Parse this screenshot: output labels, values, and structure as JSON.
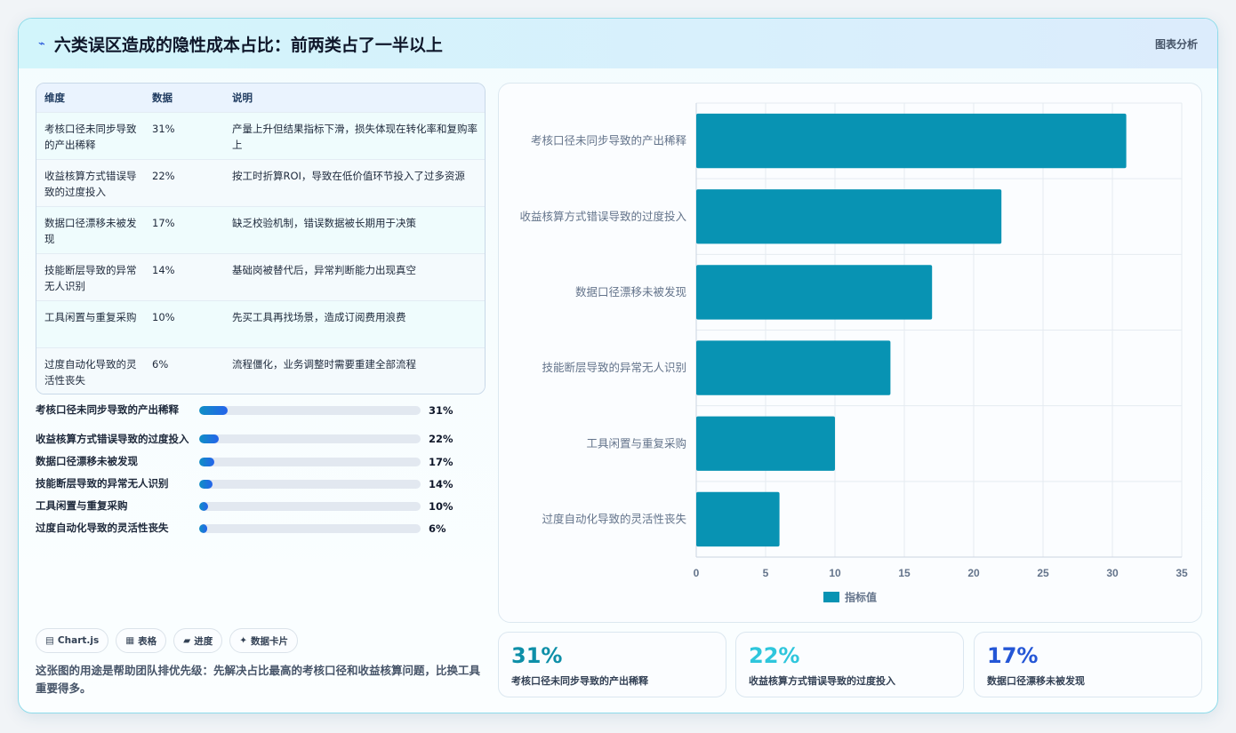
{
  "header": {
    "icon": "sparkline-icon",
    "title": "六类误区造成的隐性成本占比：前两类占了一半以上",
    "tag": "图表分析"
  },
  "table": {
    "columns": [
      "维度",
      "数据",
      "说明"
    ],
    "rows": [
      {
        "dimension": "考核口径未同步导致的产出稀释",
        "value": "31%",
        "desc": "产量上升但结果指标下滑，损失体现在转化率和复购率上"
      },
      {
        "dimension": "收益核算方式错误导致的过度投入",
        "value": "22%",
        "desc": "按工时折算ROI，导致在低价值环节投入了过多资源"
      },
      {
        "dimension": "数据口径漂移未被发现",
        "value": "17%",
        "desc": "缺乏校验机制，错误数据被长期用于决策"
      },
      {
        "dimension": "技能断层导致的异常无人识别",
        "value": "14%",
        "desc": "基础岗被替代后，异常判断能力出现真空"
      },
      {
        "dimension": "工具闲置与重复采购",
        "value": "10%",
        "desc": "先买工具再找场景，造成订阅费用浪费"
      },
      {
        "dimension": "过度自动化导致的灵活性丧失",
        "value": "6%",
        "desc": "流程僵化，业务调整时需要重建全部流程"
      }
    ]
  },
  "progress": [
    {
      "label": "考核口径未同步导致的产出稀释",
      "value": "31%",
      "fraction": 0.13
    },
    {
      "label": "收益核算方式错误导致的过度投入",
      "value": "22%",
      "fraction": 0.09
    },
    {
      "label": "数据口径漂移未被发现",
      "value": "17%",
      "fraction": 0.07
    },
    {
      "label": "技能断层导致的异常无人识别",
      "value": "14%",
      "fraction": 0.06
    },
    {
      "label": "工具闲置与重复采购",
      "value": "10%",
      "fraction": 0.04
    },
    {
      "label": "过度自动化导致的灵活性丧失",
      "value": "6%",
      "fraction": 0.035
    }
  ],
  "chips": [
    {
      "icon": "chart-icon",
      "label": "Chart.js"
    },
    {
      "icon": "table-icon",
      "label": "表格"
    },
    {
      "icon": "progress-icon",
      "label": "进度"
    },
    {
      "icon": "sparkle-icon",
      "label": "数据卡片"
    }
  ],
  "note": "这张图的用途是帮助团队排优先级：先解决占比最高的考核口径和收益核算问题，比换工具重要得多。",
  "stats": [
    {
      "value": "31%",
      "label": "考核口径未同步导致的产出稀释",
      "color": "#0e8fa8"
    },
    {
      "value": "22%",
      "label": "收益核算方式错误导致的过度投入",
      "color": "#2ec6dc"
    },
    {
      "value": "17%",
      "label": "数据口径漂移未被发现",
      "color": "#2456d6"
    }
  ],
  "colors": {
    "bar": "#0893b3",
    "accent": "#2563eb"
  },
  "chart_data": {
    "type": "bar",
    "orientation": "horizontal",
    "categories": [
      "考核口径未同步导致的产出稀释",
      "收益核算方式错误导致的过度投入",
      "数据口径漂移未被发现",
      "技能断层导致的异常无人识别",
      "工具闲置与重复采购",
      "过度自动化导致的灵活性丧失"
    ],
    "series": [
      {
        "name": "指标值",
        "values": [
          31,
          22,
          17,
          14,
          10,
          6
        ]
      }
    ],
    "xlim": [
      0,
      35
    ],
    "xticks": [
      "0",
      "5",
      "10",
      "15",
      "20",
      "25",
      "30",
      "35"
    ],
    "grid": true,
    "legend": "bottom"
  }
}
